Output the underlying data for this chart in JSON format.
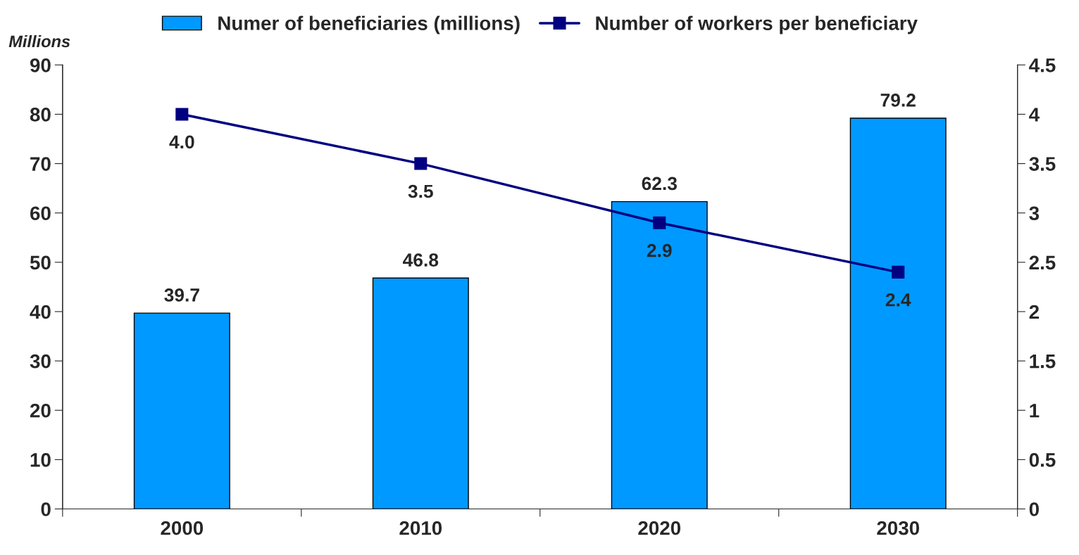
{
  "chart_data": {
    "type": "bar",
    "ylabel": "Millions",
    "categories": [
      "2000",
      "2010",
      "2020",
      "2030"
    ],
    "series": [
      {
        "name": "Numer of beneficiaries (millions)",
        "color": "#0099ff",
        "values": [
          39.7,
          46.8,
          62.3,
          79.2
        ],
        "value_labels": [
          "39.7",
          "46.8",
          "62.3",
          "79.2"
        ]
      },
      {
        "name": "Number of workers per beneficiary",
        "type": "line",
        "axis": "y2",
        "color": "#000080",
        "marker": "square",
        "values": [
          4.0,
          3.5,
          2.9,
          2.4
        ],
        "value_labels": [
          "4.0",
          "3.5",
          "2.9",
          "2.4"
        ]
      }
    ],
    "ylim": [
      0,
      90
    ],
    "yticks": [
      0,
      10,
      20,
      30,
      40,
      50,
      60,
      70,
      80,
      90
    ],
    "y2lim": [
      0,
      4.5
    ],
    "y2ticks": [
      0,
      0.5,
      1,
      1.5,
      2,
      2.5,
      3,
      3.5,
      4,
      4.5
    ],
    "grid": false,
    "legend": "top"
  }
}
